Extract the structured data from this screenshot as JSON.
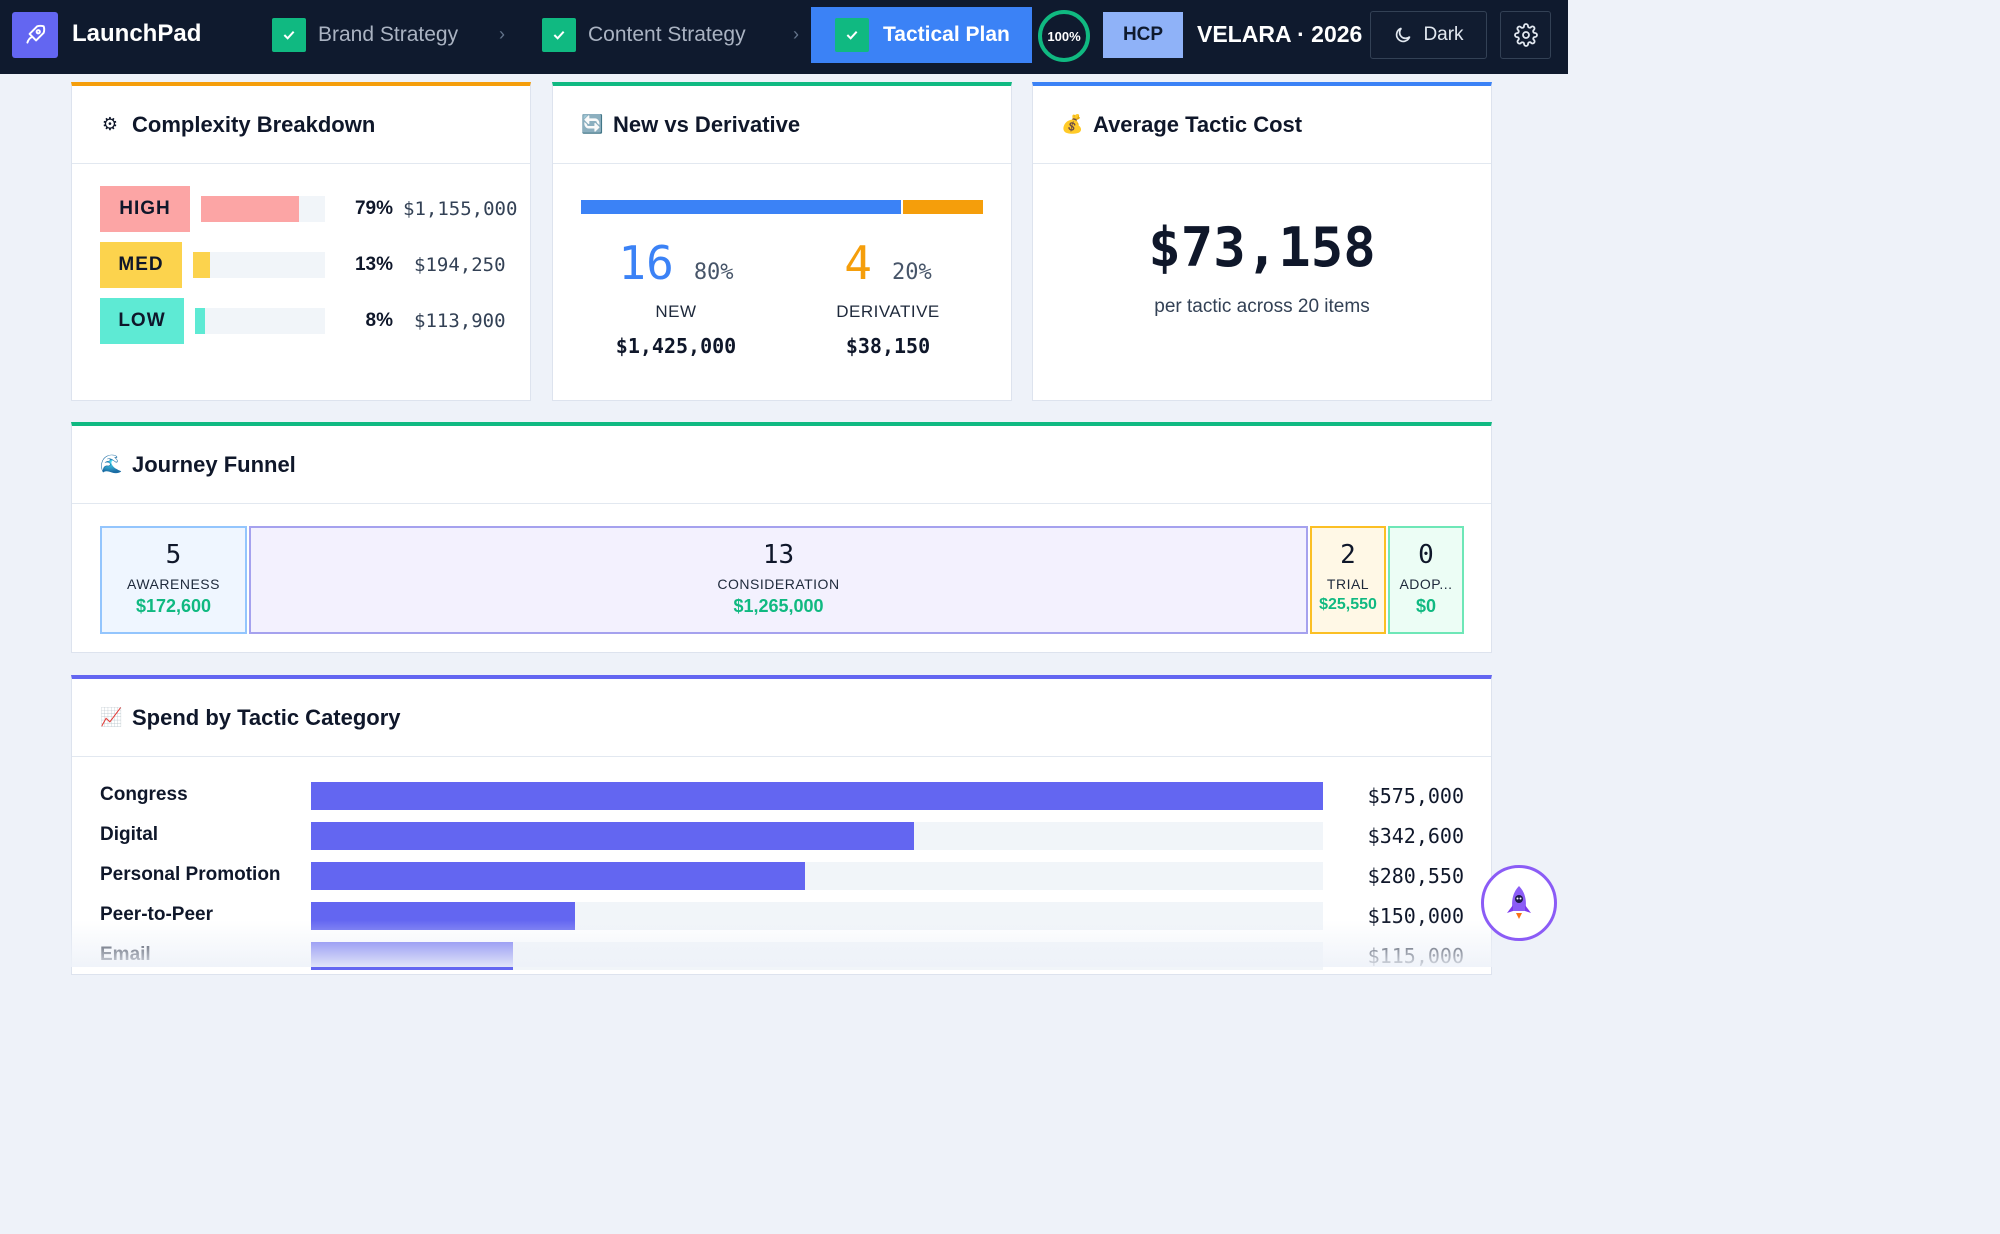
{
  "header": {
    "app_name": "LaunchPad",
    "steps": [
      {
        "label": "Brand Strategy",
        "status": "complete"
      },
      {
        "label": "Content Strategy",
        "status": "complete"
      },
      {
        "label": "Tactical Plan",
        "status": "active"
      }
    ],
    "progress_label": "100%",
    "audience_badge": "HCP",
    "brand_label": "VELARA · 2026",
    "theme_button_label": "Dark"
  },
  "complexity": {
    "title": "Complexity Breakdown",
    "icon": "gear-icon",
    "rows": [
      {
        "tag": "HIGH",
        "pct_label": "79%",
        "fraction": 0.79,
        "amount": "$1,155,000",
        "color": "#fca5a5"
      },
      {
        "tag": "MED",
        "pct_label": "13%",
        "fraction": 0.13,
        "amount": "$194,250",
        "color": "#fcd34d"
      },
      {
        "tag": "LOW",
        "pct_label": "8%",
        "fraction": 0.08,
        "amount": "$113,900",
        "color": "#5eead4"
      }
    ]
  },
  "new_vs_derivative": {
    "title": "New vs Derivative",
    "icon": "refresh-icon",
    "new": {
      "count": "16",
      "pct": "80%",
      "label": "NEW",
      "amount": "$1,425,000",
      "fraction": 0.8,
      "color": "#3b82f6"
    },
    "derivative": {
      "count": "4",
      "pct": "20%",
      "label": "DERIVATIVE",
      "amount": "$38,150",
      "fraction": 0.2,
      "color": "#f59e0b"
    }
  },
  "avg_cost": {
    "title": "Average Tactic Cost",
    "icon": "money-bag-icon",
    "value": "$73,158",
    "subtitle": "per tactic across 20 items"
  },
  "funnel": {
    "title": "Journey Funnel",
    "icon": "wave-icon",
    "stages": [
      {
        "count": "5",
        "label": "AWARENESS",
        "amount": "$172,600",
        "bg": "#eff6ff",
        "border": "#93c5fd"
      },
      {
        "count": "13",
        "label": "CONSIDERATION",
        "amount": "$1,265,000",
        "bg": "#f3f1fe",
        "border": "#a5a1ee"
      },
      {
        "count": "2",
        "label": "TRIAL",
        "amount": "$25,550",
        "bg": "#fff8e6",
        "border": "#fbbf24"
      },
      {
        "count": "0",
        "label": "ADOP...",
        "amount": "$0",
        "bg": "#ecfdf5",
        "border": "#6ee7b7"
      }
    ]
  },
  "spend": {
    "title": "Spend by Tactic Category",
    "icon": "chart-icon",
    "max_value": 575000,
    "rows": [
      {
        "label": "Congress",
        "value": 575000,
        "amount": "$575,000"
      },
      {
        "label": "Digital",
        "value": 342600,
        "amount": "$342,600"
      },
      {
        "label": "Personal Promotion",
        "value": 280550,
        "amount": "$280,550"
      },
      {
        "label": "Peer-to-Peer",
        "value": 150000,
        "amount": "$150,000"
      },
      {
        "label": "Email",
        "value": 115000,
        "amount": "$115,000"
      }
    ]
  },
  "colors": {
    "accent_blue": "#3b82f6",
    "success_green": "#10b981",
    "indigo": "#6366f1",
    "orange": "#f59e0b"
  }
}
